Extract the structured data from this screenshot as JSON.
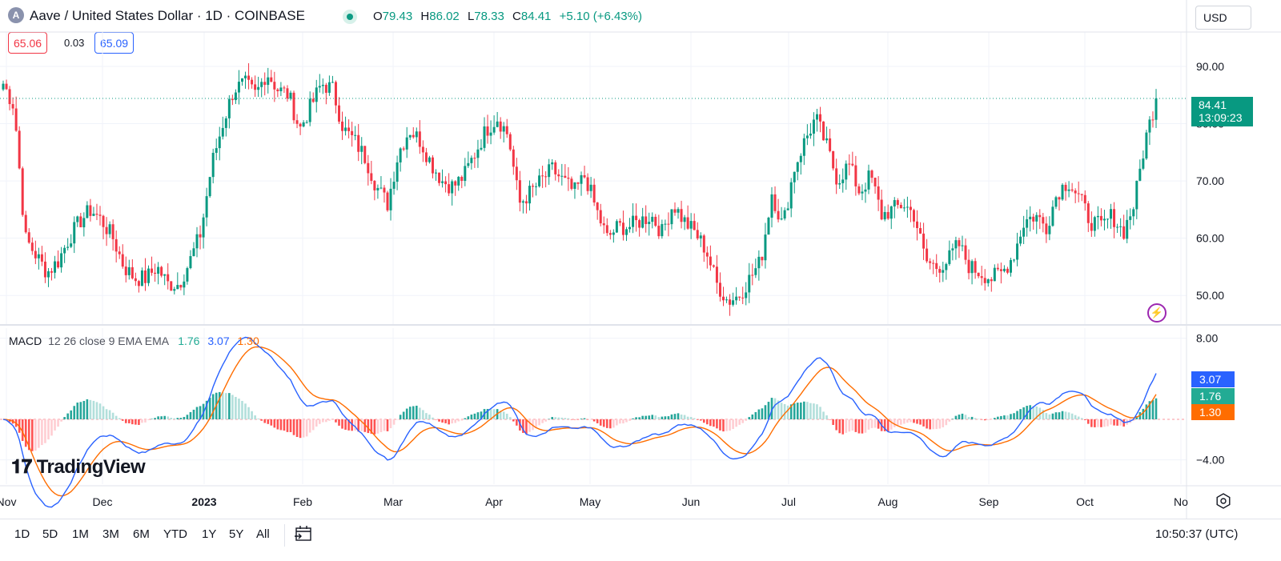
{
  "header": {
    "logo_letter": "A",
    "logo_icon": "aave-logo-icon",
    "title": "Aave / United States Dollar · 1D · COINBASE",
    "market_status_icon": "market-open-dot-icon",
    "ohlc": {
      "o_label": "O",
      "o": "79.43",
      "h_label": "H",
      "h": "86.02",
      "l_label": "L",
      "l": "78.33",
      "c_label": "C",
      "c": "84.41",
      "change": "+5.10 (+6.43%)"
    },
    "currency": "USD"
  },
  "quote": {
    "bid": "65.06",
    "spread": "0.03",
    "ask": "65.09"
  },
  "price_axis": {
    "labels": [
      "90.00",
      "80.00",
      "70.00",
      "60.00",
      "50.00"
    ],
    "last_price": "84.41",
    "countdown": "13:09:23"
  },
  "macd": {
    "name": "MACD",
    "params": "12 26 close 9 EMA EMA",
    "histogram": "1.76",
    "macd": "3.07",
    "signal": "1.30",
    "axis_labels": [
      "8.00",
      "−4.00"
    ],
    "colors": {
      "macd": "#2962ff",
      "signal": "#ff6d00",
      "hist_up": "#22ab94",
      "hist_down": "#f23645"
    }
  },
  "time_axis": [
    "Nov",
    "Dec",
    "2023",
    "Feb",
    "Mar",
    "Apr",
    "May",
    "Jun",
    "Jul",
    "Aug",
    "Sep",
    "Oct",
    "No"
  ],
  "brand": "TradingView",
  "toolbar": {
    "ranges": [
      "1D",
      "5D",
      "1M",
      "3M",
      "6M",
      "YTD",
      "1Y",
      "5Y",
      "All"
    ],
    "goto_icon": "calendar-goto-icon",
    "time": "10:50:37 (UTC)"
  },
  "colors": {
    "up": "#089981",
    "down": "#f23645",
    "grid": "#f0f3fa"
  },
  "chart_data": {
    "type": "candlestick",
    "series_anchor_prices": [
      87,
      83,
      60,
      57,
      54,
      56,
      60,
      63,
      65,
      63,
      60,
      55,
      53,
      53,
      55,
      52,
      52,
      56,
      61,
      73,
      80,
      86,
      87,
      85,
      89,
      86,
      85,
      79,
      83,
      87,
      86,
      79,
      77,
      74,
      69,
      66,
      75,
      79,
      77,
      73,
      70,
      69,
      71,
      75,
      79,
      81,
      78,
      66,
      68,
      70,
      72,
      70,
      68,
      71,
      65,
      60,
      62,
      62,
      63,
      64,
      61,
      66,
      63,
      61,
      58,
      52,
      49,
      50,
      53,
      56,
      68,
      62,
      72,
      77,
      81,
      76,
      70,
      73,
      68,
      71,
      64,
      65,
      66,
      64,
      56,
      55,
      56,
      59,
      55,
      54,
      53,
      54,
      57,
      63,
      64,
      62,
      68,
      70,
      67,
      63,
      62,
      64,
      61,
      66,
      77,
      84.41
    ],
    "price_range": [
      45,
      96
    ],
    "macd_range": [
      -6,
      9
    ]
  }
}
